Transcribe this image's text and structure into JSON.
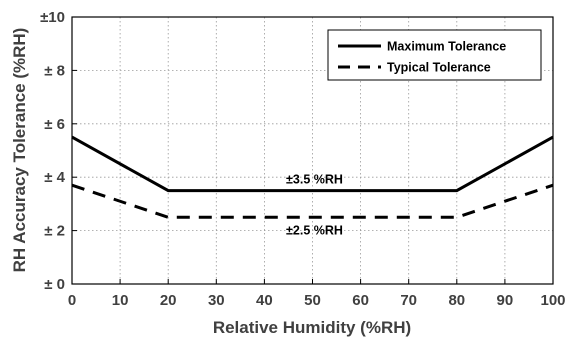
{
  "chart_data": {
    "type": "line",
    "xlabel": "Relative Humidity (%RH)",
    "ylabel": "RH Accuracy Tolerance (%RH)",
    "xlim": [
      0,
      100
    ],
    "ylim": [
      0,
      10
    ],
    "x_ticks": [
      "0",
      "10",
      "20",
      "30",
      "40",
      "50",
      "60",
      "70",
      "80",
      "90",
      "100"
    ],
    "y_ticks": [
      "± 0",
      "± 2",
      "± 4",
      "± 6",
      "± 8",
      "±10"
    ],
    "grid": true,
    "legend_position": "top-right",
    "series": [
      {
        "name": "Maximum Tolerance",
        "style": "solid",
        "color": "#000000",
        "x": [
          0,
          20,
          80,
          100
        ],
        "y": [
          5.5,
          3.5,
          3.5,
          5.5
        ]
      },
      {
        "name": "Typical Tolerance",
        "style": "dashed",
        "color": "#000000",
        "x": [
          0,
          20,
          80,
          100
        ],
        "y": [
          3.7,
          2.5,
          2.5,
          3.7
        ]
      }
    ],
    "annotations": [
      {
        "text": "±3.5 %RH",
        "x": 50,
        "y": 3.5,
        "position": "above"
      },
      {
        "text": "±2.5 %RH",
        "x": 50,
        "y": 2.5,
        "position": "below"
      }
    ]
  }
}
